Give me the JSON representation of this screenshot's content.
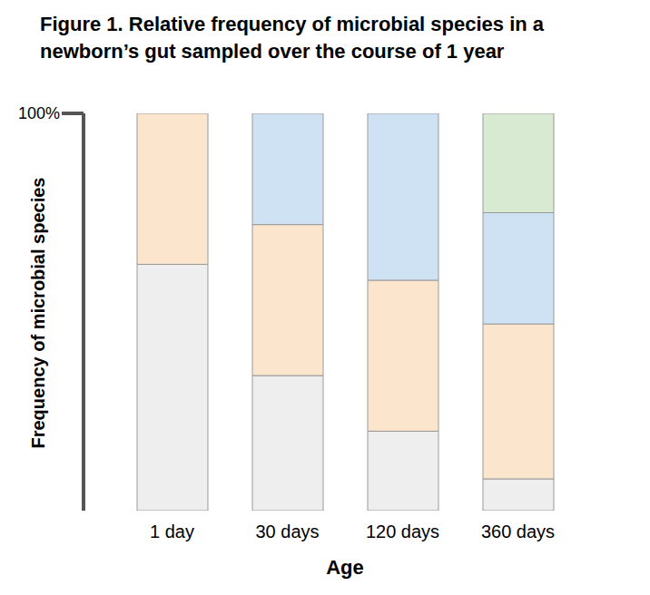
{
  "chart_data": {
    "type": "bar",
    "title": [
      "Figure 1. Relative frequency of microbial species in a",
      "newborn’s gut sampled over the course of 1 year"
    ],
    "x_label": "Age",
    "y_label": "Frequency of microbial species",
    "categories": [
      "1 day",
      "30 days",
      "120 days",
      "360 days"
    ],
    "stacked": true,
    "series": [
      {
        "color": "#eeeeee",
        "values": [
          62,
          34,
          20,
          8
        ]
      },
      {
        "color": "#fce5cd",
        "values": [
          38,
          38,
          38,
          39
        ]
      },
      {
        "color": "#cfe2f3",
        "values": [
          0,
          28,
          42,
          28
        ]
      },
      {
        "color": "#d9ead3",
        "values": [
          0,
          0,
          0,
          25
        ]
      }
    ],
    "ylim": [
      0,
      100
    ],
    "yticks": [
      {
        "value": 100,
        "label": "100%"
      }
    ],
    "grid": false,
    "tick_labels": true
  }
}
